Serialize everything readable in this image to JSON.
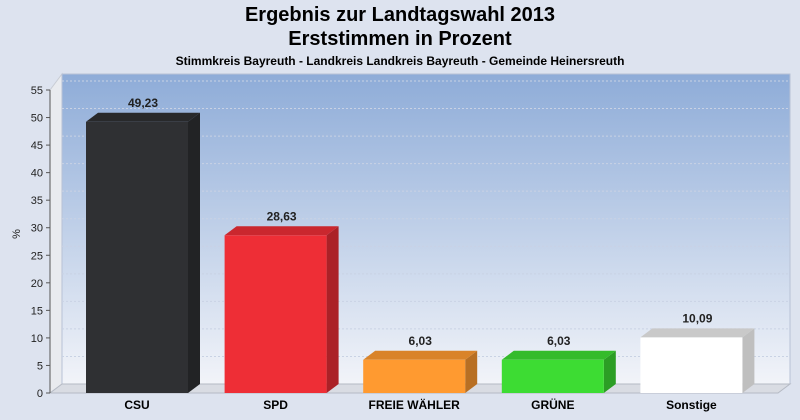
{
  "chart_data": {
    "type": "bar",
    "title": "Ergebnis zur Landtagswahl 2013",
    "subtitle": "Erststimmen in Prozent",
    "caption": "Stimmkreis Bayreuth - Landkreis Landkreis Bayreuth - Gemeinde Heinersreuth",
    "ylabel": "%",
    "xlabel": "",
    "ylim": [
      0,
      55
    ],
    "yticks": [
      0,
      5,
      10,
      15,
      20,
      25,
      30,
      35,
      40,
      45,
      50,
      55
    ],
    "categories": [
      "CSU",
      "SPD",
      "FREIE WÄHLER",
      "GRÜNE",
      "Sonstige"
    ],
    "values": [
      49.23,
      28.63,
      6.03,
      6.03,
      10.09
    ],
    "value_labels": [
      "49,23",
      "28,63",
      "6,03",
      "6,03",
      "10,09"
    ],
    "colors": [
      "#2f3033",
      "#ee2e36",
      "#ff9a30",
      "#3ddc33",
      "#ffffff"
    ],
    "grid": true
  }
}
